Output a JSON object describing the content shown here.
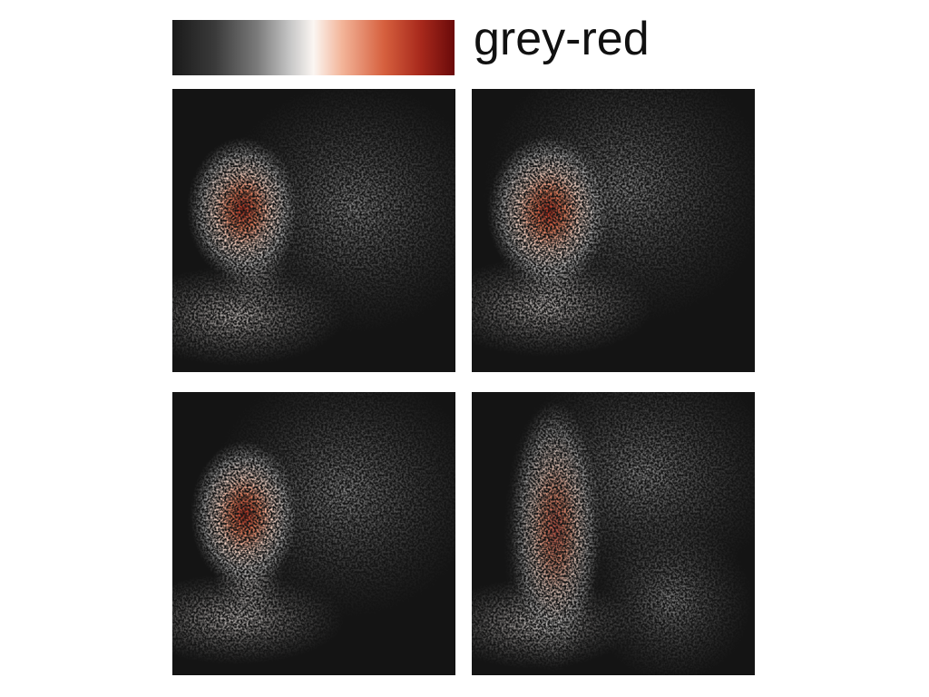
{
  "legend": {
    "label": "grey-red"
  }
}
